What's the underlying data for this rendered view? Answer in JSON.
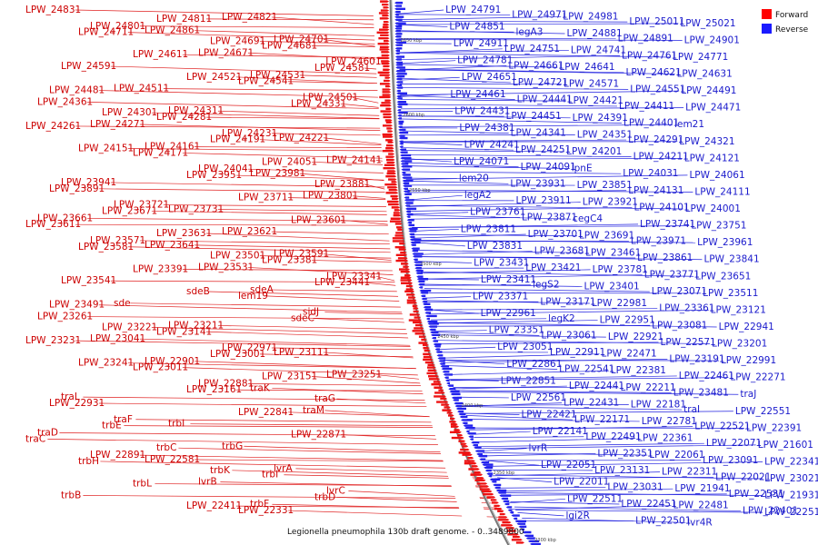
{
  "caption": "Legionella pneumophila 130b draft genome. - 0..3489800",
  "legend": [
    {
      "label": "Forward",
      "color": "#ff0000"
    },
    {
      "label": "Reverse",
      "color": "#1a1aff"
    }
  ],
  "ticks": [
    "2650 kbp",
    "2600 kbp",
    "2550 kbp",
    "2500 kbp",
    "2450 kbp",
    "2400 kbp",
    "2350 kbp",
    "2300 kbp"
  ],
  "forward_labels": [
    "LPW_24831",
    "LPW_24821",
    "LPW_24811",
    "LPW_24801",
    "LPW_24861",
    "LPW_24711",
    "LPW_24701",
    "LPW_24691",
    "LPW_24681",
    "LPW_24671",
    "LPW_24611",
    "LPW_24601",
    "LPW_24591",
    "LPW_24581",
    "LPW_24531",
    "LPW_24521",
    "LPW_24541",
    "LPW_24511",
    "LPW_24481",
    "LPW_24501",
    "LPW_24361",
    "LPW_24331",
    "LPW_24311",
    "LPW_24301",
    "LPW_24281",
    "LPW_24271",
    "LPW_24261",
    "LPW_24231",
    "LPW_24221",
    "LPW_24191",
    "LPW_24161",
    "LPW_24151",
    "LPW_24171",
    "LPW_24141",
    "LPW_24051",
    "LPW_24041",
    "LPW_23981",
    "LPW_23951",
    "LPW_23941",
    "LPW_23881",
    "LPW_23891",
    "LPW_23801",
    "LPW_23711",
    "LPW_23721",
    "LPW_23731",
    "LPW_23671",
    "LPW_23661",
    "LPW_23601",
    "LPW_23611",
    "LPW_23621",
    "LPW_23631",
    "LPW_23571",
    "LPW_23641",
    "LPW_23581",
    "LPW_23591",
    "LPW_23501",
    "LPW_23381",
    "LPW_23531",
    "LPW_23391",
    "LPW_23341",
    "LPW_23541",
    "LPW_23441",
    "sdeA",
    "sdeB",
    "lem19",
    "sde",
    "LPW_23491",
    "sidJ",
    "LPW_23261",
    "sdeC",
    "LPW_23211",
    "LPW_23221",
    "LPW_23141",
    "LPW_23041",
    "LPW_23231",
    "LPW_22971",
    "LPW_23111",
    "LPW_23001",
    "LPW_22901",
    "LPW_23241",
    "LPW_23011",
    "LPW_23251",
    "LPW_23151",
    "LPW_22881",
    "traK",
    "LPW_23161",
    "traL",
    "traG",
    "LPW_22931",
    "traM",
    "LPW_22841",
    "traF",
    "trbI",
    "trbE",
    "traD",
    "LPW_22871",
    "traC",
    "trbG",
    "trbC",
    "LPW_22891",
    "LPW_22581",
    "trbH",
    "lvrA",
    "trbK",
    "trbI",
    "lvrB",
    "trbL",
    "lvrC",
    "trbB",
    "trbD",
    "trbF",
    "LPW_22411",
    "LPW_22331"
  ],
  "reverse_labels": [
    "LPW_24791",
    "LPW_24971",
    "LPW_24981",
    "LPW_25011",
    "LPW_25021",
    "LPW_24851",
    "legA3",
    "LPW_24881",
    "LPW_24891",
    "LPW_24901",
    "LPW_24911",
    "LPW_24751",
    "LPW_24741",
    "LPW_24761",
    "LPW_24771",
    "LPW_24781",
    "LPW_24661",
    "LPW_24641",
    "LPW_24621",
    "LPW_24631",
    "LPW_24651",
    "LPW_24721",
    "LPW_24571",
    "LPW_24551",
    "LPW_24491",
    "LPW_24461",
    "LPW_24441",
    "LPW_24421",
    "LPW_24411",
    "LPW_24471",
    "LPW_24431",
    "LPW_24451",
    "LPW_24391",
    "LPW_24401",
    "lem21",
    "LPW_24381",
    "LPW_24341",
    "LPW_24351",
    "LPW_24291",
    "LPW_24321",
    "LPW_24241",
    "LPW_24251",
    "LPW_24201",
    "LPW_24211",
    "LPW_24121",
    "LPW_24071",
    "LPW_24091",
    "lpnE",
    "LPW_24031",
    "LPW_24061",
    "lem20",
    "LPW_23931",
    "LPW_23851",
    "LPW_24131",
    "LPW_24111",
    "legA2",
    "LPW_23911",
    "LPW_23921",
    "LPW_24101",
    "LPW_24001",
    "LPW_23761",
    "LPW_23871",
    "cegC4",
    "LPW_23741",
    "LPW_23751",
    "LPW_23811",
    "LPW_23701",
    "LPW_23691",
    "LPW_23971",
    "LPW_23961",
    "LPW_23831",
    "LPW_23681",
    "LPW_23461",
    "LPW_23861",
    "LPW_23841",
    "LPW_23431",
    "LPW_23421",
    "LPW_23781",
    "LPW_23771",
    "LPW_23651",
    "LPW_23411",
    "legS2",
    "LPW_23401",
    "LPW_23071",
    "LPW_23511",
    "LPW_23371",
    "LPW_23171",
    "LPW_22981",
    "LPW_23361",
    "LPW_23121",
    "LPW_22961",
    "legK2",
    "LPW_22951",
    "LPW_23081",
    "LPW_22941",
    "LPW_23351",
    "LPW_23061",
    "LPW_22921",
    "LPW_22571",
    "LPW_23201",
    "LPW_23051",
    "LPW_22911",
    "LPW_22471",
    "LPW_23191",
    "LPW_22991",
    "LPW_22861",
    "LPW_22541",
    "LPW_22381",
    "LPW_22461",
    "LPW_22271",
    "LPW_22851",
    "LPW_22441",
    "LPW_22211",
    "LPW_23481",
    "traJ",
    "LPW_22561",
    "LPW_22431",
    "LPW_22181",
    "traI",
    "LPW_22551",
    "LPW_22421",
    "LPW_22171",
    "LPW_22781",
    "LPW_22521",
    "LPW_22391",
    "LPW_22141",
    "LPW_22491",
    "LPW_22361",
    "LPW_22071",
    "LPW_21601",
    "lvrR",
    "LPW_22351",
    "LPW_22061",
    "LPW_23091",
    "LPW_22341",
    "LPW_22051",
    "LPW_23131",
    "LPW_22311",
    "LPW_22021",
    "LPW_23021",
    "LPW_22011",
    "LPW_23031",
    "LPW_21941",
    "LPW_22531",
    "LPW_21931",
    "LPW_22511",
    "LPW_22451",
    "LPW_22481",
    "LPW_22401",
    "LPW_22251",
    "lgi2R",
    "LPW_22501",
    "lvr4R"
  ]
}
